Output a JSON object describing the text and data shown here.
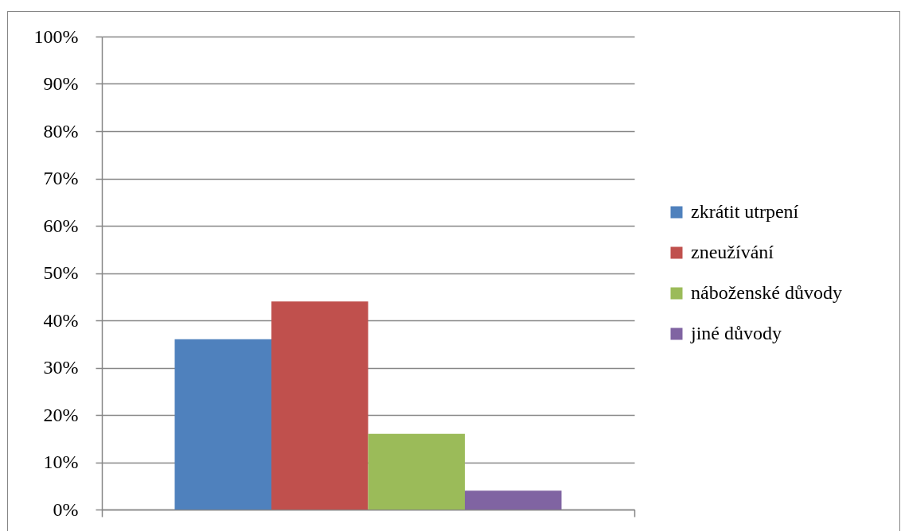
{
  "chart_data": {
    "type": "bar",
    "categories": [
      null
    ],
    "series": [
      {
        "name": "zkrátit utrpení",
        "color": "#4f81bd",
        "values": [
          36
        ]
      },
      {
        "name": "zneužívání",
        "color": "#c0504d",
        "values": [
          44
        ]
      },
      {
        "name": "náboženské důvody",
        "color": "#9bbb59",
        "values": [
          16
        ]
      },
      {
        "name": "jiné důvody",
        "color": "#8064a2",
        "values": [
          4
        ]
      }
    ],
    "ylim": [
      0,
      100
    ],
    "yticks": [
      {
        "value": 0,
        "label": "0%"
      },
      {
        "value": 10,
        "label": "10%"
      },
      {
        "value": 20,
        "label": "20%"
      },
      {
        "value": 30,
        "label": "30%"
      },
      {
        "value": 40,
        "label": "40%"
      },
      {
        "value": 50,
        "label": "50%"
      },
      {
        "value": 60,
        "label": "60%"
      },
      {
        "value": 70,
        "label": "70%"
      },
      {
        "value": 80,
        "label": "80%"
      },
      {
        "value": 90,
        "label": "90%"
      },
      {
        "value": 100,
        "label": "100%"
      }
    ],
    "grid": "y",
    "legend": "right",
    "tick_labels": "y"
  }
}
